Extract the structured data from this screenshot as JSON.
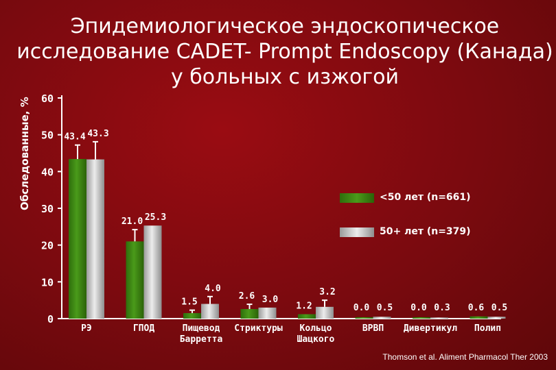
{
  "slide": {
    "title_lines": [
      "Эпидемиологическое эндоскопическое",
      "исследование CADET- Prompt Endoscopy (Канада)",
      "у больных с изжогой"
    ],
    "source": "Thomson et al. Aliment Pharmacol Ther 2003"
  },
  "colors": {
    "series1": "#4a9a1a",
    "series2": "#c8c8c8",
    "axis": "#ffffff"
  },
  "chart_data": {
    "type": "bar",
    "ylabel": "Обследованные, %",
    "ylim": [
      0,
      60
    ],
    "yticks": [
      0,
      10,
      20,
      30,
      40,
      50,
      60
    ],
    "grid": false,
    "legend_position": "right",
    "categories": [
      "РЭ",
      "ГПОД",
      "Пищевод Барретта",
      "Стриктуры",
      "Кольцо Шацкого",
      "ВРВП",
      "Дивертикул",
      "Полип"
    ],
    "category_labels": [
      [
        "РЭ"
      ],
      [
        "ГПОД"
      ],
      [
        "Пищевод",
        "Барретта"
      ],
      [
        "Стриктуры"
      ],
      [
        "Кольцо",
        "Шацкого"
      ],
      [
        "ВРВП"
      ],
      [
        "Дивертикул"
      ],
      [
        "Полип"
      ]
    ],
    "series": [
      {
        "name": "<50 лет (n=661)",
        "values": [
          43.4,
          21.0,
          1.5,
          2.6,
          1.2,
          0.0,
          0.0,
          0.6
        ],
        "labels": [
          "43.4",
          "21.0",
          "1.5",
          "2.6",
          "1.2",
          "0.0",
          "0.0",
          "0.6"
        ],
        "errors": [
          3.8,
          3.2,
          0.8,
          1.3,
          0.0,
          0.0,
          0.0,
          0.0
        ]
      },
      {
        "name": "50+ лет (n=379)",
        "values": [
          43.3,
          25.3,
          4.0,
          3.0,
          3.2,
          0.5,
          0.3,
          0.5
        ],
        "labels": [
          "43.3",
          "25.3",
          "4.0",
          "3.0",
          "3.2",
          "0.5",
          "0.3",
          "0.5"
        ],
        "errors": [
          4.8,
          0.0,
          2.0,
          0.0,
          1.8,
          0.0,
          0.0,
          0.0
        ]
      }
    ]
  }
}
